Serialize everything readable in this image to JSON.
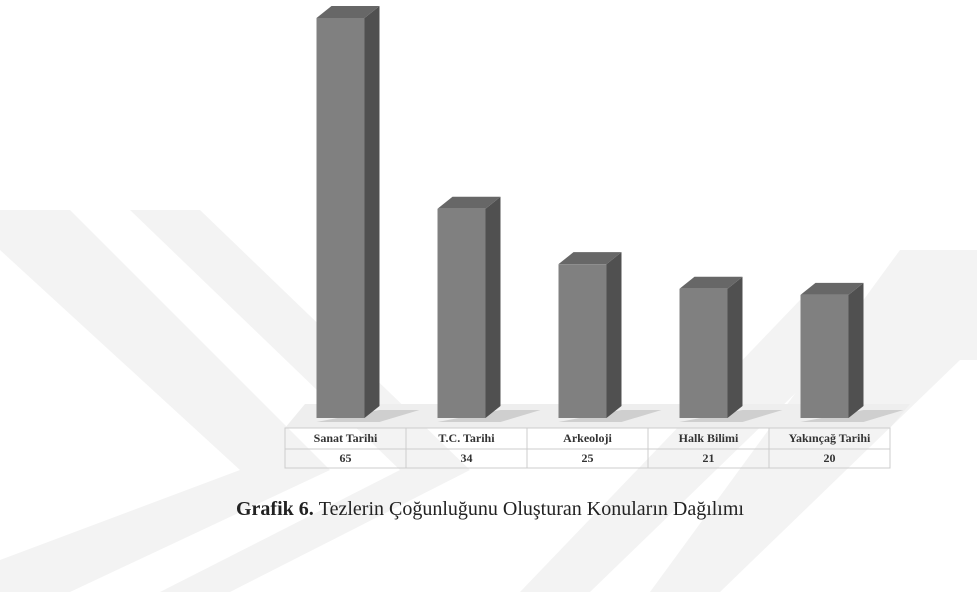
{
  "chart_data": {
    "type": "bar3d",
    "caption_label": "Grafik 6.",
    "title": "Tezlerin Çoğunluğunu Oluşturan Konuların Dağılımı",
    "categories": [
      "Sanat Tarihi",
      "T.C. Tarihi",
      "Arkeoloji",
      "Halk Bilimi",
      "Yakınçağ Tarihi"
    ],
    "values": [
      65,
      34,
      25,
      21,
      20
    ],
    "color": "#808080"
  }
}
